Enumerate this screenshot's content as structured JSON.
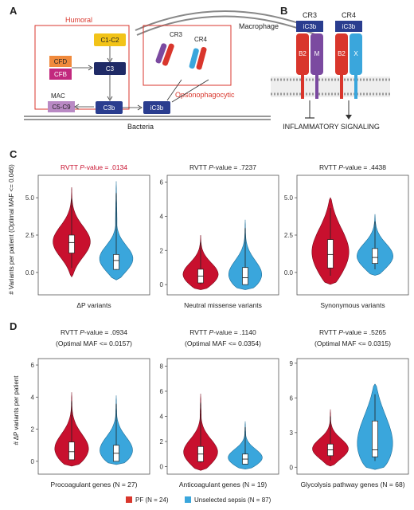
{
  "panels": {
    "A": "A",
    "B": "B",
    "C": "C",
    "D": "D"
  },
  "diagram_a": {
    "humoral": "Humoral",
    "macrophage": "Macrophage",
    "cr3": "CR3",
    "cr4": "CR4",
    "c1c2": "C1-C2",
    "c3": "C3",
    "cfd": "CFD",
    "cfb": "CFB",
    "mac": "MAC",
    "c5c9": "C5-C9",
    "c3b": "C3b",
    "ic3b": "iC3b",
    "opsonophagocytic": "Opsonophagocytic",
    "bacteria": "Bacteria"
  },
  "diagram_b": {
    "cr3": "CR3",
    "cr4": "CR4",
    "ic3b_1": "iC3b",
    "ic3b_2": "iC3b",
    "b2_1": "B2",
    "m": "M",
    "b2_2": "B2",
    "x": "X",
    "signaling": "INFLAMMATORY SIGNALING"
  },
  "colors": {
    "pf": "#c8102e",
    "sepsis": "#3aa6dc",
    "c3b": "#2a3d8f",
    "c1c2": "#f2c318",
    "cfd": "#f08a3c",
    "cfb": "#c2297e",
    "c5c9": "#b989c4",
    "purple": "#7b4aa0"
  },
  "y_axis_c": "# Variants per patient (Optimal MAF <= 0.046)",
  "y_axis_d": "# ΔP variants per patient",
  "legend": {
    "pf": "PF (N = 24)",
    "sepsis": "Unselected sepsis (N = 87)"
  },
  "chart_data": [
    {
      "type": "violin",
      "panel": "C",
      "title_prefix": "RVTT ",
      "title_italic": "P",
      "title_suffix": "-value = .0134",
      "title2": "",
      "title_color": "#c8102e",
      "xlabel": "ΔP variants",
      "ylim": [
        -1.5,
        6.5
      ],
      "yticks": [
        "0.0",
        "2.5",
        "5.0"
      ],
      "ytick_values": [
        0,
        2.5,
        5
      ],
      "series": [
        {
          "name": "PF",
          "median": 2.0,
          "q1": 1.3,
          "q3": 2.5,
          "min": -0.3,
          "max": 5.7
        },
        {
          "name": "Unselected sepsis",
          "median": 0.8,
          "q1": 0.2,
          "q3": 1.2,
          "min": -0.5,
          "max": 6.1
        }
      ]
    },
    {
      "type": "violin",
      "panel": "C",
      "title_prefix": "RVTT ",
      "title_italic": "P",
      "title_suffix": "-value = .7237",
      "title2": "",
      "title_color": "#222222",
      "xlabel": "Neutral missense variants",
      "ylim": [
        -0.6,
        6.4
      ],
      "yticks": [
        "0",
        "2",
        "4",
        "6"
      ],
      "ytick_values": [
        0,
        2,
        4,
        6
      ],
      "series": [
        {
          "name": "PF",
          "median": 0.5,
          "q1": 0.1,
          "q3": 0.9,
          "min": -0.3,
          "max": 2.9
        },
        {
          "name": "Unselected sepsis",
          "median": 0.4,
          "q1": 0.0,
          "q3": 1.0,
          "min": -0.3,
          "max": 3.8
        }
      ]
    },
    {
      "type": "violin",
      "panel": "C",
      "title_prefix": "RVTT ",
      "title_italic": "P",
      "title_suffix": "-value = .4438",
      "title2": "",
      "title_color": "#222222",
      "xlabel": "Synonymous variants",
      "ylim": [
        -1.5,
        6.5
      ],
      "yticks": [
        "0.0",
        "2.5",
        "5.0"
      ],
      "ytick_values": [
        0,
        2.5,
        5
      ],
      "series": [
        {
          "name": "PF",
          "median": 1.2,
          "q1": 0.3,
          "q3": 2.2,
          "min": -0.8,
          "max": 5.0
        },
        {
          "name": "Unselected sepsis",
          "median": 1.0,
          "q1": 0.6,
          "q3": 1.6,
          "min": -0.2,
          "max": 3.9
        }
      ]
    },
    {
      "type": "violin",
      "panel": "D",
      "title_prefix": "RVTT ",
      "title_italic": "P",
      "title_suffix": "-value = .0934",
      "title2": "(Optimal MAF <= 0.0157)",
      "title_color": "#222222",
      "xlabel": "Procoagulant genes (N = 27)",
      "ylim": [
        -0.8,
        6.4
      ],
      "yticks": [
        "0",
        "2",
        "4",
        "6"
      ],
      "ytick_values": [
        0,
        2,
        4,
        6
      ],
      "series": [
        {
          "name": "PF",
          "median": 0.6,
          "q1": 0.1,
          "q3": 1.2,
          "min": -0.3,
          "max": 4.3
        },
        {
          "name": "Unselected sepsis",
          "median": 0.5,
          "q1": 0.0,
          "q3": 1.0,
          "min": -0.2,
          "max": 4.1
        }
      ]
    },
    {
      "type": "violin",
      "panel": "D",
      "title_prefix": "RVTT ",
      "title_italic": "P",
      "title_suffix": "-value = .1140",
      "title2": "(Optimal MAF <= 0.0354)",
      "title_color": "#222222",
      "xlabel": "Anticoagulant genes (N = 19)",
      "ylim": [
        -0.6,
        8.6
      ],
      "yticks": [
        "0",
        "2",
        "4",
        "6",
        "8"
      ],
      "ytick_values": [
        0,
        2,
        4,
        6,
        8
      ],
      "series": [
        {
          "name": "PF",
          "median": 1.0,
          "q1": 0.4,
          "q3": 1.6,
          "min": -0.3,
          "max": 5.8
        },
        {
          "name": "Unselected sepsis",
          "median": 0.6,
          "q1": 0.2,
          "q3": 1.0,
          "min": -0.2,
          "max": 3.6
        }
      ]
    },
    {
      "type": "violin",
      "panel": "D",
      "title_prefix": "RVTT ",
      "title_italic": "P",
      "title_suffix": "-value = .5265",
      "title2": "(Optimal MAF <= 0.0315)",
      "title_color": "#222222",
      "xlabel": "Glycolysis pathway genes (N = 68)",
      "ylim": [
        -0.6,
        9.4
      ],
      "yticks": [
        "0",
        "3",
        "6",
        "9"
      ],
      "ytick_values": [
        0,
        3,
        6,
        9
      ],
      "series": [
        {
          "name": "PF",
          "median": 1.5,
          "q1": 1.0,
          "q3": 2.0,
          "min": 0.1,
          "max": 5.0
        },
        {
          "name": "Unselected sepsis",
          "median": 1.5,
          "q1": 0.9,
          "q3": 4.0,
          "min": -0.2,
          "max": 7.2
        }
      ]
    }
  ]
}
